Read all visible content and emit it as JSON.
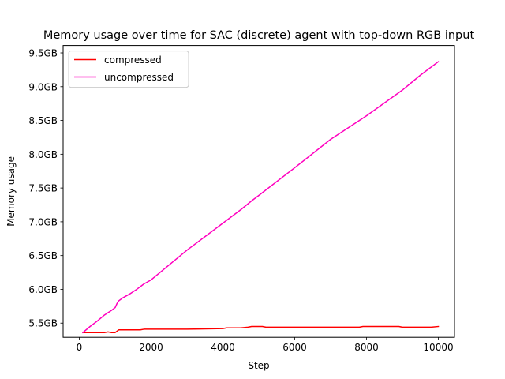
{
  "chart_data": {
    "type": "line",
    "title": "Memory usage over time for SAC (discrete) agent with top-down RGB input",
    "xlabel": "Step",
    "ylabel": "Memory usage",
    "xlim": [
      -450,
      10450
    ],
    "ylim": [
      5.29,
      9.61
    ],
    "x_ticks": [
      0,
      2000,
      4000,
      6000,
      8000,
      10000
    ],
    "x_tick_labels": [
      "0",
      "2000",
      "4000",
      "6000",
      "8000",
      "10000"
    ],
    "y_ticks": [
      5.5,
      6.0,
      6.5,
      7.0,
      7.5,
      8.0,
      8.5,
      9.0,
      9.5
    ],
    "y_tick_labels": [
      "5.5GB",
      "6.0GB",
      "6.5GB",
      "7.0GB",
      "7.5GB",
      "8.0GB",
      "8.5GB",
      "9.0GB",
      "9.5GB"
    ],
    "grid": false,
    "legend_position": "upper-left",
    "series": [
      {
        "name": "compressed",
        "color": "#ff0000",
        "x": [
          100,
          300,
          500,
          700,
          800,
          900,
          1000,
          1050,
          1100,
          1500,
          1700,
          1800,
          2500,
          3000,
          4000,
          4100,
          4500,
          4700,
          4800,
          5100,
          5200,
          6000,
          7000,
          7800,
          7900,
          8900,
          9000,
          9800,
          10000
        ],
        "y": [
          5.36,
          5.36,
          5.36,
          5.36,
          5.37,
          5.36,
          5.36,
          5.38,
          5.4,
          5.4,
          5.4,
          5.41,
          5.41,
          5.41,
          5.42,
          5.43,
          5.43,
          5.44,
          5.45,
          5.45,
          5.44,
          5.44,
          5.44,
          5.44,
          5.45,
          5.45,
          5.44,
          5.44,
          5.45
        ]
      },
      {
        "name": "uncompressed",
        "color": "#ff00bf",
        "x": [
          100,
          300,
          500,
          700,
          900,
          1000,
          1050,
          1100,
          1200,
          1400,
          1600,
          1800,
          2000,
          3000,
          4000,
          4500,
          4800,
          5000,
          6000,
          7000,
          8000,
          9000,
          9500,
          10000
        ],
        "y": [
          5.36,
          5.45,
          5.53,
          5.62,
          5.69,
          5.73,
          5.79,
          5.83,
          5.87,
          5.93,
          6.0,
          6.08,
          6.14,
          6.58,
          6.98,
          7.18,
          7.31,
          7.39,
          7.8,
          8.22,
          8.57,
          8.95,
          9.17,
          9.37
        ]
      }
    ]
  }
}
